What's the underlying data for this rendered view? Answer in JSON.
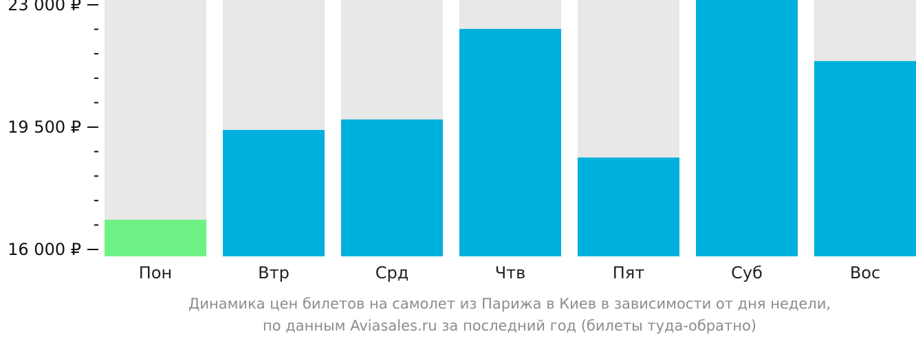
{
  "chart_data": {
    "type": "bar",
    "categories": [
      "Пон",
      "Втр",
      "Срд",
      "Чтв",
      "Пят",
      "Суб",
      "Вос"
    ],
    "values": [
      16850,
      19420,
      19720,
      22310,
      18630,
      23230,
      21390
    ],
    "ylim": [
      16000,
      23000
    ],
    "y_ticks": [
      16000,
      19500,
      23000
    ],
    "y_tick_labels": [
      "16 000 ₽",
      "19 500 ₽",
      "23 000 ₽"
    ],
    "minor_ticks_per_interval": 4,
    "grid": false,
    "legend": "none",
    "title": "",
    "xlabel": "",
    "ylabel": "",
    "colors": {
      "bar": "#00b0dc",
      "bar_lowest": "#6ef285",
      "bar_background": "#e8e8e8",
      "axis": "#111111"
    }
  },
  "caption": {
    "line1": "Динамика цен билетов на самолет из Парижа в Киев в зависимости от дня недели,",
    "line2": "по данным Aviasales.ru за последний год (билеты туда-обратно)"
  }
}
